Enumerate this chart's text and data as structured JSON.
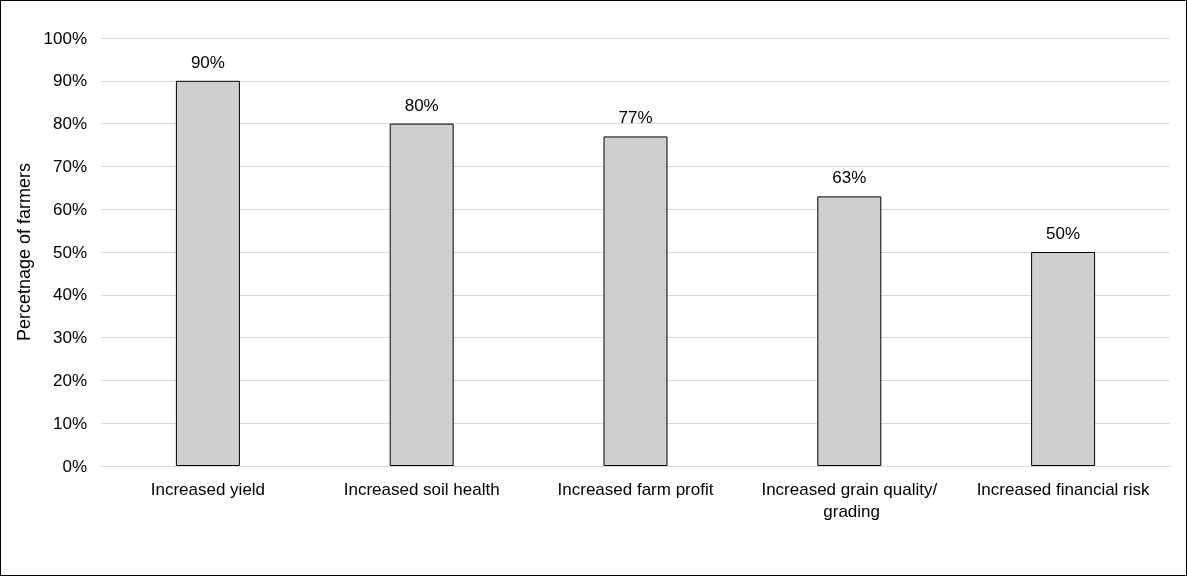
{
  "chart_data": {
    "type": "bar",
    "ylabel": "Percetnage of farmers",
    "categories": [
      "Increased yield",
      "Increased soil health",
      "Increased farm profit",
      "Increased grain quality/ grading",
      "Increased financial risk"
    ],
    "values": [
      90,
      80,
      77,
      63,
      50
    ],
    "value_labels": [
      "90%",
      "80%",
      "77%",
      "63%",
      "50%"
    ],
    "color": "#d0cece",
    "ylim": [
      0,
      100
    ],
    "yticks": [
      {
        "value": 0,
        "label": "0%"
      },
      {
        "value": 10,
        "label": "10%"
      },
      {
        "value": 20,
        "label": "20%"
      },
      {
        "value": 30,
        "label": "30%"
      },
      {
        "value": 40,
        "label": "40%"
      },
      {
        "value": 50,
        "label": "50%"
      },
      {
        "value": 60,
        "label": "60%"
      },
      {
        "value": 70,
        "label": "70%"
      },
      {
        "value": 80,
        "label": "80%"
      },
      {
        "value": 90,
        "label": "90%"
      },
      {
        "value": 100,
        "label": "100%"
      }
    ],
    "grid": "y"
  }
}
